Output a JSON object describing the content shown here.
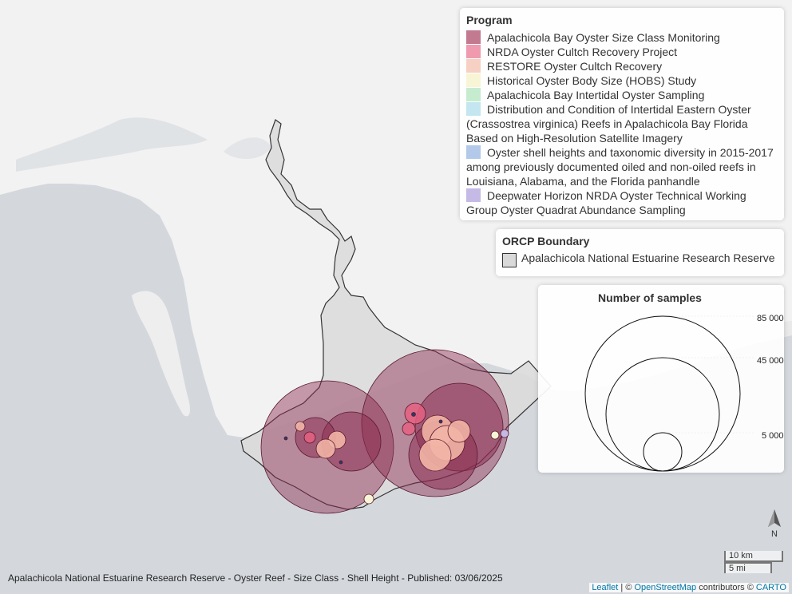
{
  "legend_program": {
    "title": "Program",
    "items": [
      {
        "label": "Apalachicola Bay Oyster Size Class Monitoring",
        "color": "#c27a91"
      },
      {
        "label": "NRDA Oyster Cultch Recovery Project",
        "color": "#f09aaf"
      },
      {
        "label": "RESTORE Oyster Cultch Recovery",
        "color": "#f7d0c4"
      },
      {
        "label": "Historical Oyster Body Size (HOBS) Study",
        "color": "#f7f5d5"
      },
      {
        "label": "Apalachicola Bay Intertidal Oyster Sampling",
        "color": "#c6eccf"
      },
      {
        "label": "Distribution and Condition of Intertidal Eastern Oyster (Crassostrea virginica) Reefs in Apalachicola Bay Florida Based on High-Resolution Satellite Imagery",
        "color": "#c3e6f0"
      },
      {
        "label": "Oyster shell heights and taxonomic diversity in 2015-2017 among previously documented oiled and non-oiled reefs in Louisiana, Alabama, and the Florida panhandle",
        "color": "#b3c9ea"
      },
      {
        "label": "Deepwater Horizon NRDA Oyster Technical Working Group Oyster Quadrat Abundance Sampling",
        "color": "#c5bae6"
      }
    ]
  },
  "legend_orcp": {
    "title": "ORCP Boundary",
    "label": "Apalachicola National Estuarine Research Reserve"
  },
  "legend_size": {
    "title": "Number of samples",
    "ticks": [
      "85 000",
      "45 000",
      "5 000"
    ]
  },
  "caption": "Apalachicola National Estuarine Research Reserve - Oyster Reef - Size Class - Shell Height - Published: 03/06/2025",
  "attribution": {
    "leaflet": "Leaflet",
    "sep": " | © ",
    "osm": "OpenStreetMap",
    "contrib": " contributors © ",
    "carto": "CARTO"
  },
  "scale": {
    "km": "10 km",
    "mi": "5 mi"
  },
  "north": "N",
  "colors": {
    "water": "#d4d8dd",
    "land": "#f2f2f2",
    "reserve_fill": "#dcdcdc",
    "bubble_main": "#8b2a4e"
  }
}
